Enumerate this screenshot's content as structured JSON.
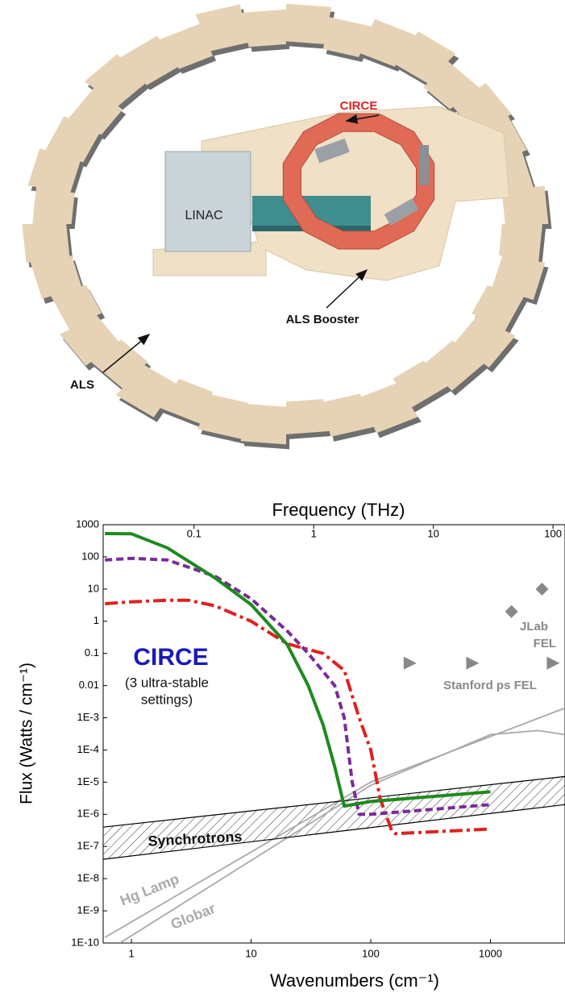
{
  "diagram": {
    "labels": {
      "circe": "CIRCE",
      "linac": "LINAC",
      "booster": "ALS Booster",
      "als": "ALS"
    }
  },
  "chart_data": {
    "type": "line",
    "x_label": "Wavenumbers (cm⁻¹)",
    "x2_label": "Frequency (THz)",
    "y_label": "Flux (Watts / cm⁻¹)",
    "log_x": true,
    "log_y": true,
    "xlim": [
      0.58,
      4200
    ],
    "xticks": [
      1,
      10,
      100,
      1000
    ],
    "x2lim": [
      0.0174,
      126
    ],
    "x2ticks": [
      0.1,
      1,
      10,
      100
    ],
    "ylim": [
      1e-10,
      1000
    ],
    "yticks": [
      1000,
      100,
      10,
      1,
      0.1,
      0.01,
      {
        "value": 0.001,
        "label": "1E-3"
      },
      {
        "value": 0.0001,
        "label": "1E-4"
      },
      {
        "value": 1e-05,
        "label": "1E-5"
      },
      {
        "value": 1e-06,
        "label": "1E-6"
      },
      {
        "value": 1e-07,
        "label": "1E-7"
      },
      {
        "value": 1e-08,
        "label": "1E-8"
      },
      {
        "value": 1e-09,
        "label": "1E-9"
      },
      {
        "value": 1e-10,
        "label": "1E-10"
      }
    ],
    "annotations": [
      "CIRCE",
      "(3 ultra-stable",
      "settings)",
      "Synchrotrons",
      "Hg Lamp",
      "Globar",
      "JLab",
      "FEL",
      "Stanford ps FEL"
    ],
    "series": [
      {
        "color": "#1e8a1e",
        "line_style": "solid",
        "x": [
          0.6,
          1,
          2,
          5,
          10,
          20,
          30,
          40,
          50,
          60,
          100,
          1000
        ],
        "values": [
          530,
          520,
          190,
          22,
          3.3,
          0.19,
          0.01,
          0.0006,
          3e-05,
          1.8e-06,
          2.5e-06,
          5e-06
        ]
      },
      {
        "color": "#7a2a9a",
        "line_style": "dashed",
        "x": [
          0.6,
          1,
          2,
          5,
          10,
          20,
          30,
          50,
          60,
          70,
          80,
          100,
          1000
        ],
        "values": [
          80,
          90,
          80,
          25,
          5,
          0.5,
          0.1,
          0.01,
          0.001,
          1e-05,
          1e-06,
          1e-06,
          2e-06
        ]
      },
      {
        "color": "#e02020",
        "line_style": "dash-dot",
        "x": [
          0.6,
          1,
          2,
          3,
          5,
          10,
          20,
          40,
          60,
          80,
          100,
          120,
          150,
          160,
          1000
        ],
        "values": [
          3.5,
          4,
          4.5,
          4.5,
          3,
          1,
          0.2,
          0.1,
          0.03,
          0.001,
          0.0001,
          3e-06,
          3e-07,
          2.5e-07,
          3.5e-07
        ]
      },
      {
        "color": "#000000",
        "line_style": "solid",
        "x": [
          0.58,
          4200
        ],
        "values": [
          4e-07,
          1.5e-05
        ]
      },
      {
        "color": "#000000",
        "line_style": "solid",
        "x": [
          0.58,
          4200
        ],
        "values": [
          4e-08,
          2e-06
        ]
      },
      {
        "color": "#a8a8a8",
        "line_style": "solid",
        "x": [
          0.6,
          100,
          4200
        ],
        "values": [
          1.5e-10,
          1e-05,
          0.002
        ]
      },
      {
        "color": "#a8a8a8",
        "line_style": "solid",
        "x": [
          0.8,
          100,
          1000,
          2500,
          4200
        ],
        "values": [
          1e-10,
          8e-06,
          0.0003,
          0.0004,
          0.0003
        ]
      },
      {
        "color": "#888888",
        "marker": "diamond",
        "x": [
          1500,
          2700
        ],
        "values": [
          2,
          10
        ]
      },
      {
        "color": "#888888",
        "marker": "triangle",
        "x": [
          210,
          700,
          3300
        ],
        "values": [
          0.05,
          0.05,
          0.05
        ]
      }
    ]
  }
}
